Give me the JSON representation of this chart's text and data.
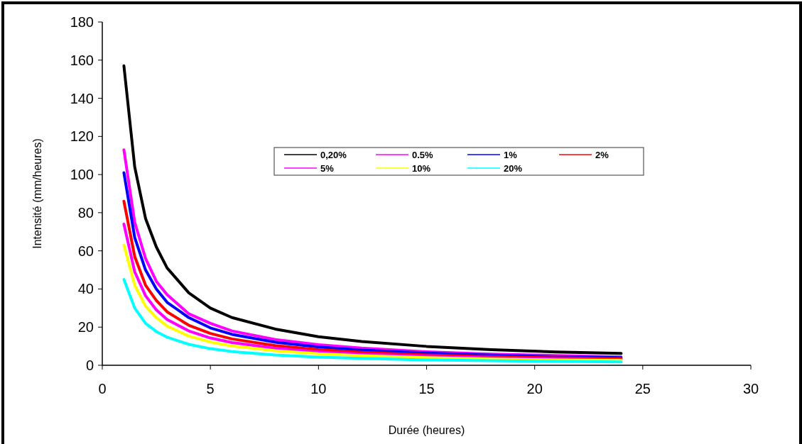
{
  "chart_data": {
    "type": "line",
    "xlabel": "Durée (heures)",
    "ylabel": "Intensité (mm/heures)",
    "x": [
      1,
      1.5,
      2,
      2.5,
      3,
      4,
      5,
      6,
      8,
      10,
      12,
      15,
      18,
      21,
      24
    ],
    "xlim": [
      0,
      30
    ],
    "xticks": [
      0,
      5,
      10,
      15,
      20,
      25,
      30
    ],
    "ylim": [
      0,
      180
    ],
    "yticks": [
      0,
      20,
      40,
      60,
      80,
      100,
      120,
      140,
      160,
      180
    ],
    "grid": false,
    "legend": "top",
    "marker": "none",
    "line_style": "solid",
    "series": [
      {
        "name": "0,20%",
        "color": "#000000",
        "values": [
          157,
          104,
          77,
          62,
          51,
          38,
          30,
          25,
          19,
          15,
          12.5,
          9.9,
          8.2,
          7,
          6.2
        ]
      },
      {
        "name": "0.5%",
        "color": "#ff00ff",
        "values": [
          113,
          75,
          56,
          44,
          37,
          27,
          22,
          18,
          13.5,
          10.8,
          9,
          7.1,
          5.9,
          5.1,
          4.4
        ]
      },
      {
        "name": "1%",
        "color": "#0000ff",
        "values": [
          101,
          67,
          50,
          40,
          33,
          25,
          19.6,
          16.2,
          12.1,
          9.6,
          8,
          6.4,
          5.3,
          4.5,
          4
        ]
      },
      {
        "name": "2%",
        "color": "#ff0000",
        "values": [
          86,
          57,
          42,
          34,
          28,
          21,
          16.7,
          13.8,
          10.3,
          8.2,
          6.8,
          5.4,
          4.5,
          3.9,
          3.4
        ]
      },
      {
        "name": "5%",
        "color": "#ff00ff",
        "values": [
          74,
          49,
          36.5,
          29,
          24,
          18,
          14.3,
          11.9,
          8.9,
          7.1,
          5.9,
          4.7,
          3.9,
          3.3,
          2.9
        ]
      },
      {
        "name": "10%",
        "color": "#ffff00",
        "values": [
          63,
          42,
          31,
          25,
          20.5,
          15.3,
          12.2,
          10.1,
          7.6,
          6,
          5,
          4,
          3.3,
          2.8,
          2.5
        ]
      },
      {
        "name": "20%",
        "color": "#00ffff",
        "values": [
          45,
          30,
          22,
          17.7,
          14.7,
          11,
          8.7,
          7.2,
          5.4,
          4.3,
          3.6,
          2.8,
          2.4,
          2,
          1.8
        ]
      }
    ]
  }
}
